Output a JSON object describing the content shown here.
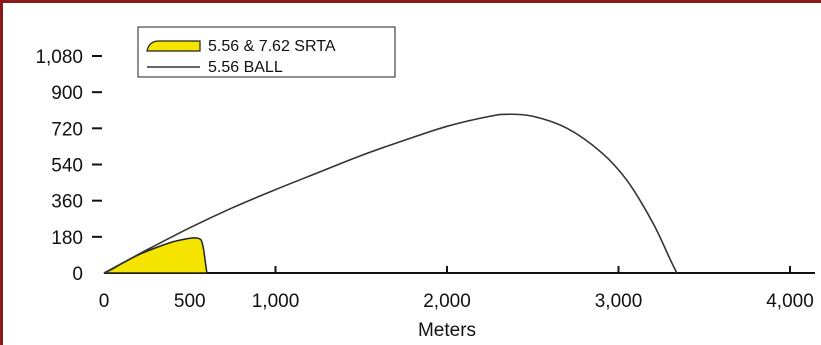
{
  "chart_data": {
    "type": "area",
    "xlabel": "Meters",
    "ylabel": "",
    "title": "",
    "xlim": [
      0,
      4000
    ],
    "ylim": [
      0,
      1080
    ],
    "x_ticks": [
      {
        "value": 0,
        "label": "0"
      },
      {
        "value": 500,
        "label": "500"
      },
      {
        "value": 1000,
        "label": "1,000"
      },
      {
        "value": 2000,
        "label": "2,000"
      },
      {
        "value": 3000,
        "label": "3,000"
      },
      {
        "value": 4000,
        "label": "4,000"
      }
    ],
    "y_ticks": [
      {
        "value": 0,
        "label": "0"
      },
      {
        "value": 180,
        "label": "180"
      },
      {
        "value": 360,
        "label": "360"
      },
      {
        "value": 540,
        "label": "540"
      },
      {
        "value": 720,
        "label": "720"
      },
      {
        "value": 900,
        "label": "900"
      },
      {
        "value": 1080,
        "label": "1,080"
      }
    ],
    "grid": false,
    "legend_position": "top-left",
    "series": [
      {
        "name": "5.56 & 7.62 SRTA",
        "style": "filled-area",
        "fill_color": "#f5e400",
        "line_color": "#222222",
        "x": [
          0,
          50,
          100,
          200,
          300,
          400,
          480,
          530,
          565,
          580,
          590,
          600
        ],
        "y": [
          0,
          20,
          45,
          90,
          125,
          155,
          170,
          175,
          165,
          120,
          60,
          0
        ]
      },
      {
        "name": "5.56 BALL",
        "style": "line",
        "line_color": "#333333",
        "x": [
          0,
          250,
          500,
          750,
          1000,
          1250,
          1500,
          1750,
          2000,
          2250,
          2350,
          2500,
          2700,
          2900,
          3050,
          3200,
          3300,
          3340
        ],
        "y": [
          0,
          115,
          225,
          325,
          415,
          500,
          585,
          660,
          730,
          780,
          790,
          780,
          720,
          600,
          460,
          250,
          70,
          0
        ]
      }
    ]
  }
}
